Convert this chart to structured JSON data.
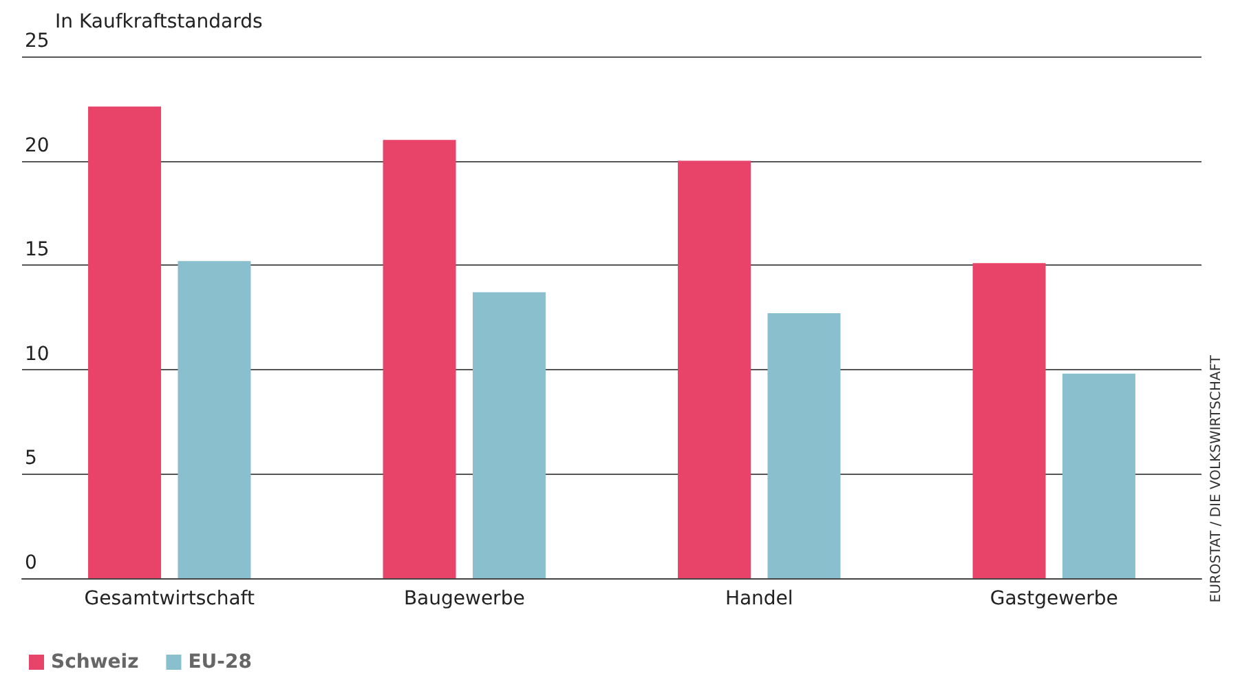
{
  "chart_data": {
    "type": "bar",
    "ylabel": "In Kaufkraftstandards",
    "categories": [
      "Gesamtwirtschaft",
      "Baugewerbe",
      "Handel",
      "Gastgewerbe"
    ],
    "series": [
      {
        "name": "Schweiz",
        "color": "#e84369",
        "values": [
          22.6,
          21.0,
          20.0,
          15.1
        ]
      },
      {
        "name": "EU-28",
        "color": "#8abfce",
        "values": [
          15.2,
          13.7,
          12.7,
          9.8
        ]
      }
    ],
    "ylim": [
      0,
      25
    ],
    "yticks": [
      0,
      5,
      10,
      15,
      20,
      25
    ],
    "grid": "y",
    "legend": "bottom left",
    "annotations": [
      "EUROSTAT / DIE VOLKSWIRTSCHAFT"
    ]
  }
}
